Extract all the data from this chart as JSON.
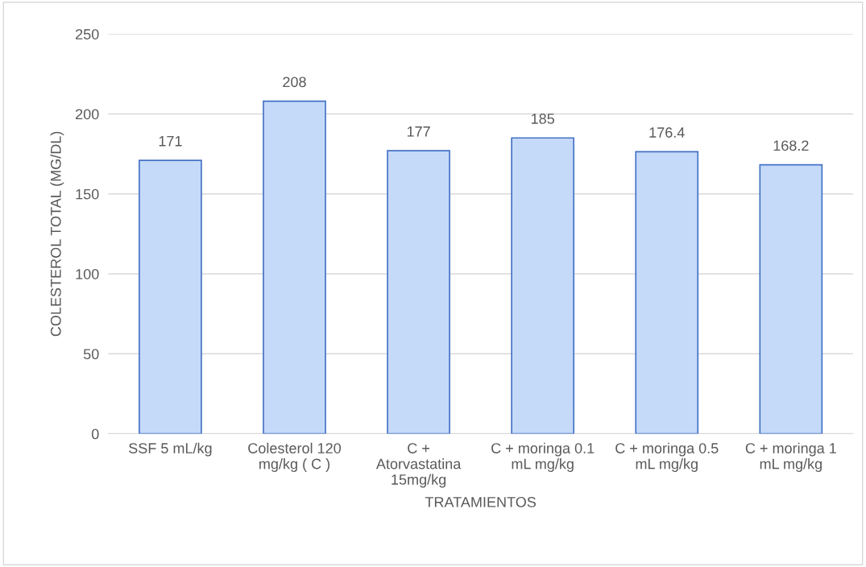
{
  "chart_data": {
    "type": "bar",
    "categories": [
      "SSF 5 mL/kg",
      "Colesterol 120\nmg/kg ( C )",
      "C +\nAtorvastatina\n15mg/kg",
      "C + moringa 0.1\nmL mg/kg",
      "C + moringa 0.5\nmL mg/kg",
      "C + moringa 1\nmL mg/kg"
    ],
    "values": [
      171,
      208,
      177,
      185,
      176.4,
      168.2
    ],
    "color": "#c5d9f9",
    "xlabel": "TRATAMIENTOS",
    "ylabel": "COLESTEROL TOTAL (MG/DL)",
    "ylim": [
      0,
      250
    ],
    "yticks": [
      0,
      50,
      100,
      150,
      200,
      250
    ],
    "grid": "y",
    "data_labels": true
  }
}
